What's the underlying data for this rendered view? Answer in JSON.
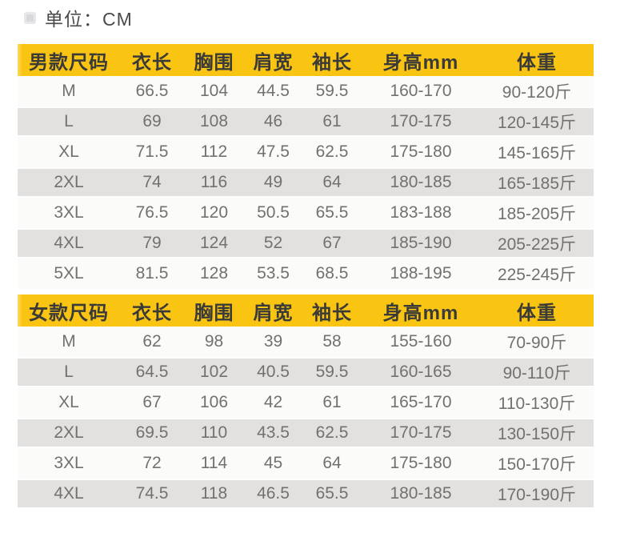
{
  "page": {
    "unit_label": "单位：CM"
  },
  "colors": {
    "header_yellow": "#fac413",
    "row_stripe_gray": "#e2e1df",
    "row_white": "#fbfbfa",
    "header_text": "#3a3a38",
    "body_text": "#73716d",
    "unit_text": "#4a4a4a"
  },
  "icons": {
    "unit_bullet": "image-placeholder-icon"
  },
  "chart_data": [
    {
      "type": "table",
      "title": "男款尺码",
      "headers": [
        "男款尺码",
        "衣长",
        "胸围",
        "肩宽",
        "袖长",
        "身高mm",
        "体重"
      ],
      "rows": [
        [
          "M",
          "66.5",
          "104",
          "44.5",
          "59.5",
          "160-170",
          "90-120斤"
        ],
        [
          "L",
          "69",
          "108",
          "46",
          "61",
          "170-175",
          "120-145斤"
        ],
        [
          "XL",
          "71.5",
          "112",
          "47.5",
          "62.5",
          "175-180",
          "145-165斤"
        ],
        [
          "2XL",
          "74",
          "116",
          "49",
          "64",
          "180-185",
          "165-185斤"
        ],
        [
          "3XL",
          "76.5",
          "120",
          "50.5",
          "65.5",
          "183-188",
          "185-205斤"
        ],
        [
          "4XL",
          "79",
          "124",
          "52",
          "67",
          "185-190",
          "205-225斤"
        ],
        [
          "5XL",
          "81.5",
          "128",
          "53.5",
          "68.5",
          "188-195",
          "225-245斤"
        ]
      ]
    },
    {
      "type": "table",
      "title": "女款尺码",
      "headers": [
        "女款尺码",
        "衣长",
        "胸围",
        "肩宽",
        "袖长",
        "身高mm",
        "体重"
      ],
      "rows": [
        [
          "M",
          "62",
          "98",
          "39",
          "58",
          "155-160",
          "70-90斤"
        ],
        [
          "L",
          "64.5",
          "102",
          "40.5",
          "59.5",
          "160-165",
          "90-110斤"
        ],
        [
          "XL",
          "67",
          "106",
          "42",
          "61",
          "165-170",
          "110-130斤"
        ],
        [
          "2XL",
          "69.5",
          "110",
          "43.5",
          "62.5",
          "170-175",
          "130-150斤"
        ],
        [
          "3XL",
          "72",
          "114",
          "45",
          "64",
          "175-180",
          "150-170斤"
        ],
        [
          "4XL",
          "74.5",
          "118",
          "46.5",
          "65.5",
          "180-185",
          "170-190斤"
        ]
      ]
    }
  ]
}
